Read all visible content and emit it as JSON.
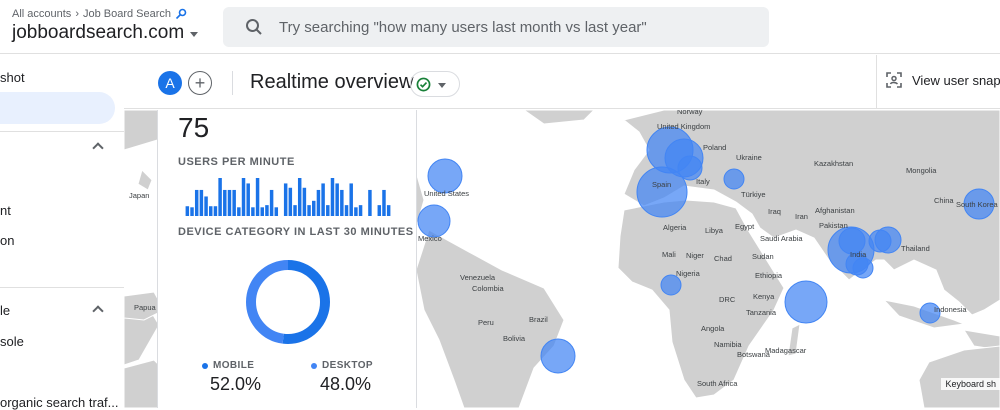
{
  "header": {
    "breadcrumb_all": "All accounts",
    "breadcrumb_sep": "›",
    "breadcrumb_account": "Job Board Search",
    "property": "jobboardsearch.com"
  },
  "search": {
    "placeholder": "Try searching \"how many users last month vs last year\""
  },
  "sidebar": {
    "items": [
      "shot",
      "nt",
      "on",
      "le",
      "sole",
      "organic search traf..."
    ]
  },
  "titlebar": {
    "avatar_letter": "A",
    "add_symbol": "+",
    "title": "Realtime overview",
    "snapshot_label": "View user snap"
  },
  "card": {
    "users_count": "75",
    "users_per_minute_label": "USERS PER MINUTE",
    "device_label": "DEVICE CATEGORY IN LAST 30 MINUTES",
    "per_minute_values": [
      9,
      8,
      24,
      24,
      18,
      9,
      9,
      35,
      24,
      24,
      24,
      8,
      35,
      30,
      8,
      35,
      8,
      10,
      24,
      8,
      0,
      30,
      26,
      10,
      35,
      26,
      10,
      14,
      24,
      30,
      10,
      35,
      30,
      24,
      10,
      30,
      8,
      10,
      0,
      24,
      0,
      10,
      24,
      10
    ],
    "devices": [
      {
        "name": "MOBILE",
        "value": "52.0%",
        "share": 52.0,
        "color": "#1a73e8"
      },
      {
        "name": "DESKTOP",
        "value": "48.0%",
        "share": 48.0,
        "color": "#4285f4"
      }
    ]
  },
  "map": {
    "country_labels": [
      "Norway",
      "United Kingdom",
      "Poland",
      "Ukraine",
      "Kazakhstan",
      "Mongolia",
      "Spain",
      "Italy",
      "Türkiye",
      "Japan",
      "United States",
      "Mexico",
      "Algeria",
      "Libya",
      "Egypt",
      "Iraq",
      "Iran",
      "Afghanistan",
      "Pakistan",
      "India",
      "Thailand",
      "China",
      "South Korea",
      "Saudi Arabia",
      "Mali",
      "Niger",
      "Chad",
      "Sudan",
      "Ethiopia",
      "Nigeria",
      "Kenya",
      "Tanzania",
      "DRC",
      "Angola",
      "Namibia",
      "Botswana",
      "Madagascar",
      "South Africa",
      "Venezuela",
      "Colombia",
      "Peru",
      "Brazil",
      "Bolivia",
      "Indonesia",
      "Papua"
    ],
    "keyboard_shortcuts": "Keyboard sh",
    "bubble_color": "#4285f4"
  }
}
